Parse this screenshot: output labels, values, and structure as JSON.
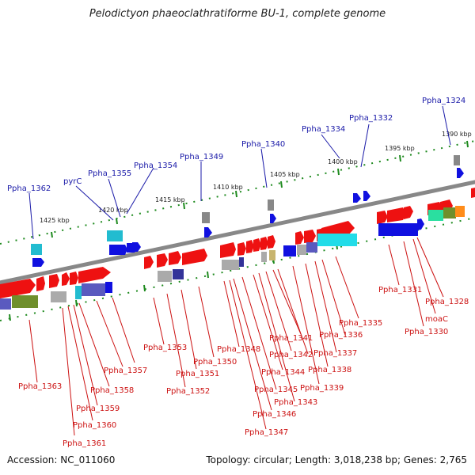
{
  "title": "Pelodictyon phaeoclathratiforme BU-1, complete genome",
  "footer": {
    "accession": "Accession: NC_011060",
    "topology": "Topology: circular; Length: 3,018,238 bp; Genes: 2,765"
  },
  "colors": {
    "backbone": "#888888",
    "tick": "#1e8a1e",
    "label_top": "#1a1aa8",
    "label_bottom": "#cc1111"
  },
  "scale_labels": [
    "1425 kbp",
    "1420 kbp",
    "1415 kbp",
    "1410 kbp",
    "1405 kbp",
    "1400 kbp",
    "1395 kbp",
    "1390 kbp"
  ],
  "top_labels": [
    "Ppha_1362",
    "pyrC",
    "Ppha_1355",
    "Ppha_1354",
    "Ppha_1349",
    "Ppha_1340",
    "Ppha_1334",
    "Ppha_1332",
    "Ppha_1324"
  ],
  "bottom_labels": [
    "Ppha_1363",
    "Ppha_1361",
    "Ppha_1360",
    "Ppha_1359",
    "Ppha_1358",
    "Ppha_1357",
    "Ppha_1353",
    "Ppha_1352",
    "Ppha_1351",
    "Ppha_1350",
    "Ppha_1348",
    "Ppha_1347",
    "Ppha_1346",
    "Ppha_1345",
    "Ppha_1344",
    "Ppha_1343",
    "Ppha_1342",
    "Ppha_1341",
    "Ppha_1339",
    "Ppha_1338",
    "Ppha_1337",
    "Ppha_1336",
    "Ppha_1335",
    "Ppha_1331",
    "Ppha_1330",
    "moaC",
    "Ppha_1328"
  ]
}
